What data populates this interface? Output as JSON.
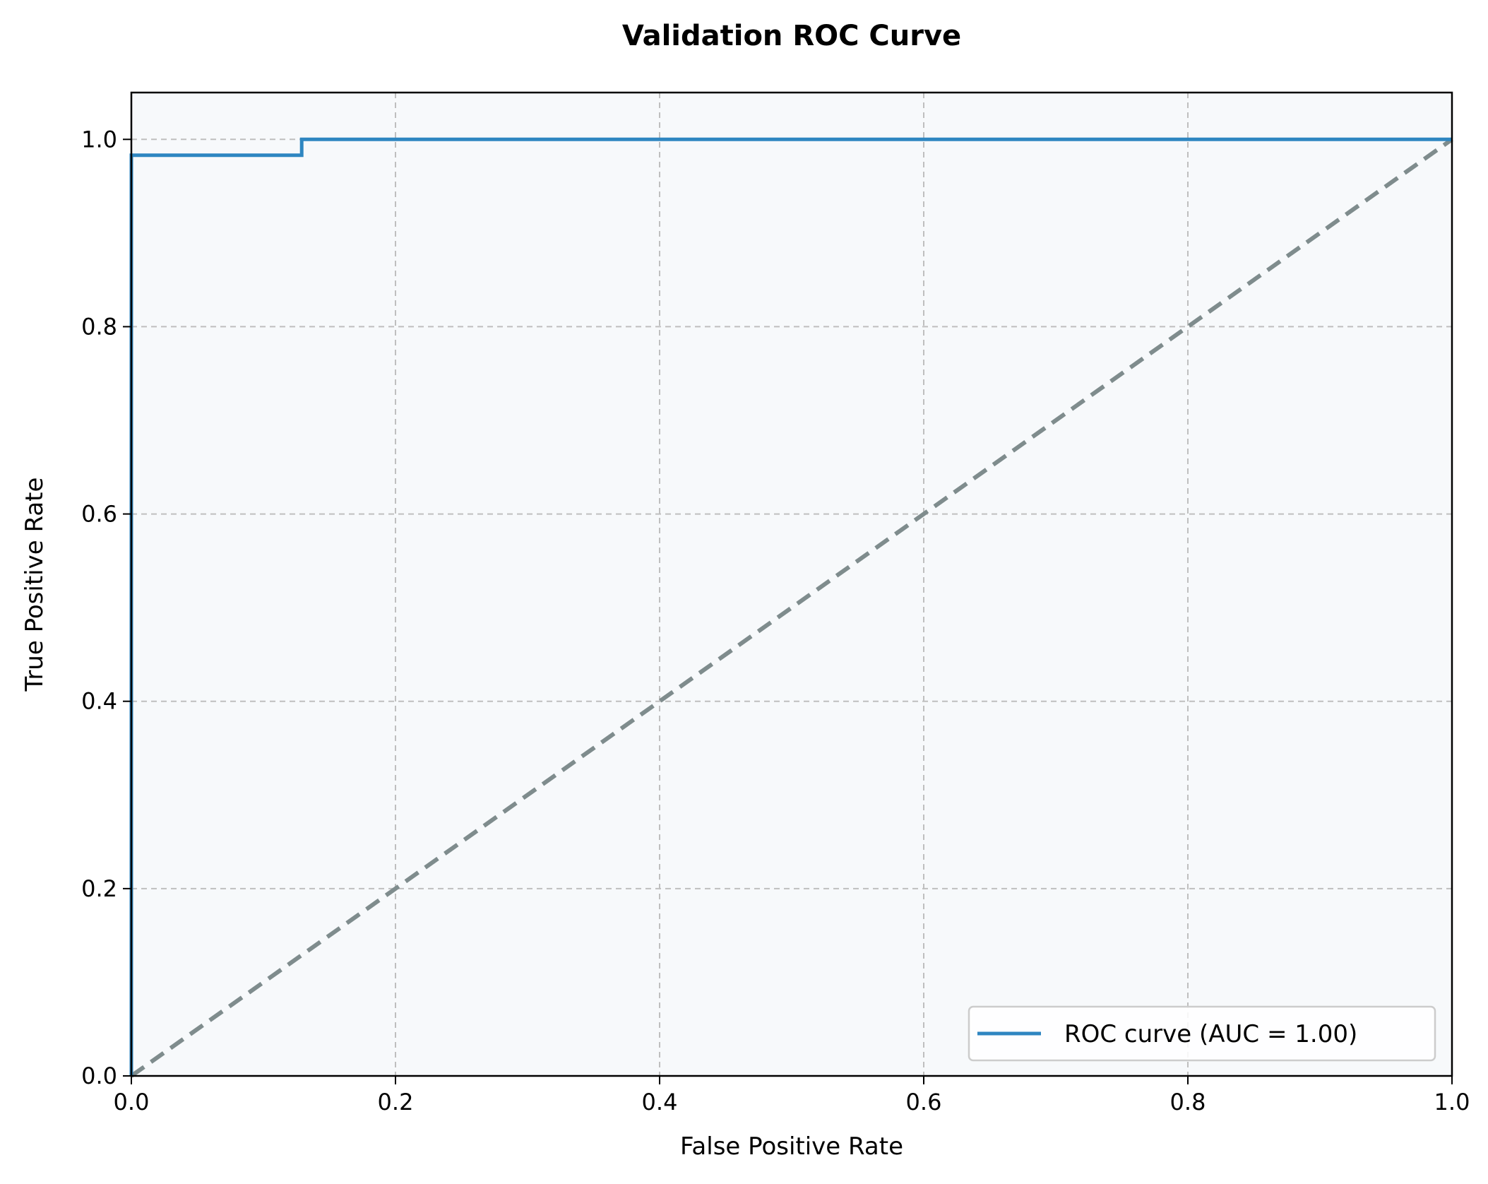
{
  "chart_data": {
    "type": "line",
    "title": "Validation ROC Curve",
    "xlabel": "False Positive Rate",
    "ylabel": "True Positive Rate",
    "xlim": [
      0.0,
      1.0
    ],
    "ylim": [
      0.0,
      1.05
    ],
    "xticks": [
      "0.0",
      "0.2",
      "0.4",
      "0.6",
      "0.8",
      "1.0"
    ],
    "yticks": [
      "0.0",
      "0.2",
      "0.4",
      "0.6",
      "0.8",
      "1.0"
    ],
    "grid": true,
    "legend_position": "lower-right",
    "series": [
      {
        "name": "ROC curve (AUC = 1.00)",
        "color": "#2e86c1",
        "style": "solid",
        "x": [
          0.0,
          0.0,
          0.129,
          0.129,
          1.0
        ],
        "y": [
          0.0,
          0.983,
          0.983,
          1.0,
          1.0
        ]
      },
      {
        "color": "#7f8c8d",
        "style": "dashed",
        "x": [
          0.0,
          1.0
        ],
        "y": [
          0.0,
          1.0
        ]
      }
    ],
    "colors": {
      "plot_background": "#f7f9fb",
      "grid": "#bfbfbf",
      "roc": "#2e86c1",
      "diagonal": "#7f8c8d"
    }
  }
}
